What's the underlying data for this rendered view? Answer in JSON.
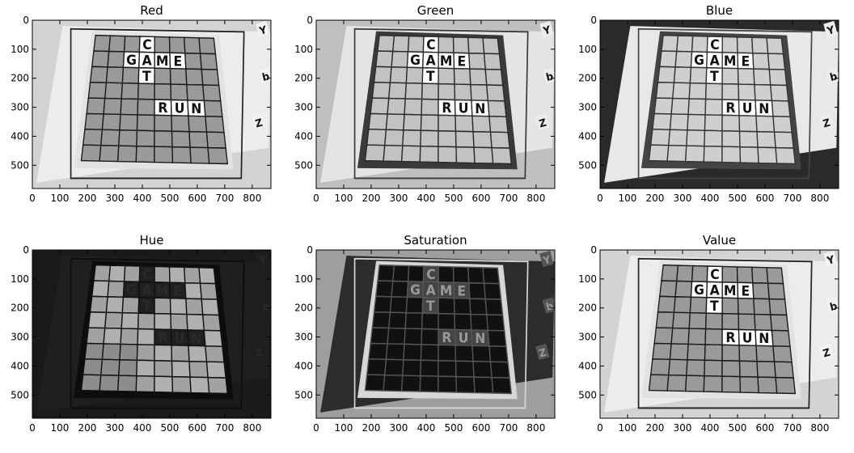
{
  "figure": {
    "panels": [
      {
        "title": "Red",
        "mode": "gray_light"
      },
      {
        "title": "Green",
        "mode": "gray_dark_border"
      },
      {
        "title": "Blue",
        "mode": "gray_dark_bg"
      },
      {
        "title": "Hue",
        "mode": "hue"
      },
      {
        "title": "Saturation",
        "mode": "saturation"
      },
      {
        "title": "Value",
        "mode": "gray_light"
      }
    ],
    "x_ticks": [
      "0",
      "100",
      "200",
      "300",
      "400",
      "500",
      "600",
      "700",
      "800"
    ],
    "y_ticks": [
      "0",
      "100",
      "200",
      "300",
      "400",
      "500"
    ],
    "x_range": [
      0,
      868
    ],
    "y_range": [
      0,
      580
    ],
    "board_letters": [
      {
        "letter": "C",
        "col": 3,
        "row": 0
      },
      {
        "letter": "G",
        "col": 2,
        "row": 1
      },
      {
        "letter": "A",
        "col": 3,
        "row": 1
      },
      {
        "letter": "M",
        "col": 4,
        "row": 1
      },
      {
        "letter": "E",
        "col": 5,
        "row": 1
      },
      {
        "letter": "T",
        "col": 3,
        "row": 2
      },
      {
        "letter": "R",
        "col": 4,
        "row": 4
      },
      {
        "letter": "U",
        "col": 5,
        "row": 4
      },
      {
        "letter": "N",
        "col": 6,
        "row": 4
      }
    ],
    "side_letters": [
      "Y",
      "b",
      "Z"
    ]
  }
}
